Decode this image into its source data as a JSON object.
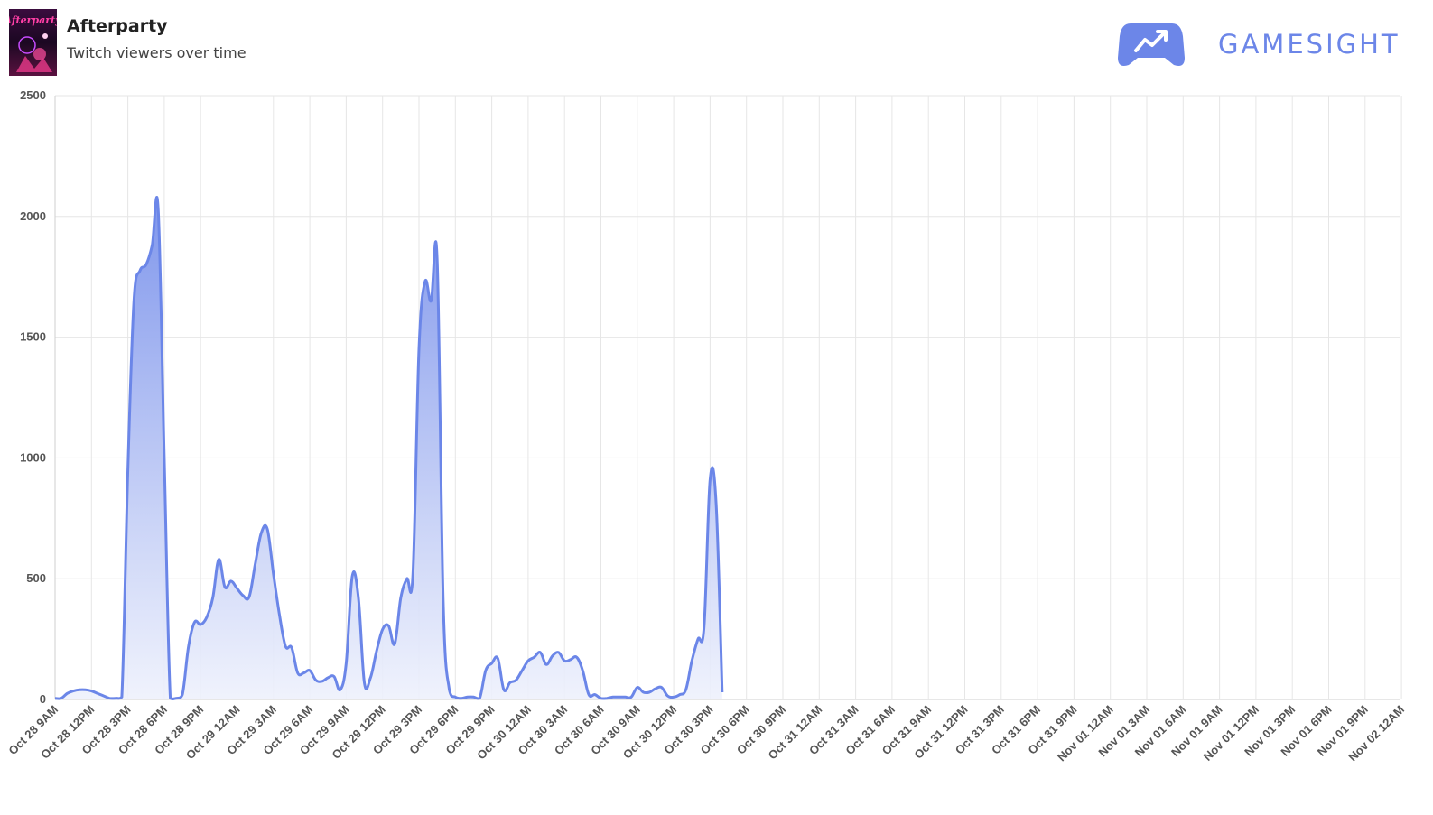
{
  "header": {
    "game_title": "Afterparty",
    "subtitle": "Twitch viewers over time",
    "brand_name": "GAMESIGHT",
    "cover_icon": "afterparty-cover-art",
    "brand_icon": "gamepad-trend-icon"
  },
  "colors": {
    "line": "#6b86e8",
    "fill_top": "#7f96ec",
    "fill_bottom": "#eef1fc",
    "grid": "#e6e6e6",
    "brand": "#6c86e8"
  },
  "chart_data": {
    "type": "area",
    "title": "",
    "xlabel": "",
    "ylabel": "",
    "ylim": [
      0,
      2500
    ],
    "yticks": [
      0,
      500,
      1000,
      1500,
      2000,
      2500
    ],
    "grid": true,
    "x_tick_labels": [
      "Oct 28 9AM",
      "Oct 28 12PM",
      "Oct 28 3PM",
      "Oct 28 6PM",
      "Oct 28 9PM",
      "Oct 29 12AM",
      "Oct 29 3AM",
      "Oct 29 6AM",
      "Oct 29 9AM",
      "Oct 29 12PM",
      "Oct 29 3PM",
      "Oct 29 6PM",
      "Oct 29 9PM",
      "Oct 30 12AM",
      "Oct 30 3AM",
      "Oct 30 6AM",
      "Oct 30 9AM",
      "Oct 30 12PM",
      "Oct 30 3PM",
      "Oct 30 6PM",
      "Oct 30 9PM",
      "Oct 31 12AM",
      "Oct 31 3AM",
      "Oct 31 6AM",
      "Oct 31 9AM",
      "Oct 31 12PM",
      "Oct 31 3PM",
      "Oct 31 6PM",
      "Oct 31 9PM",
      "Nov 01 12AM",
      "Nov 01 3AM",
      "Nov 01 6AM",
      "Nov 01 9AM",
      "Nov 01 12PM",
      "Nov 01 3PM",
      "Nov 01 6PM",
      "Nov 01 9PM",
      "Nov 02 12AM"
    ],
    "series": [
      {
        "values": [
          5,
          5,
          25,
          35,
          40,
          40,
          35,
          25,
          15,
          5,
          5,
          10,
          950,
          1650,
          1775,
          1800,
          1880,
          2030,
          1000,
          5,
          5,
          20,
          220,
          320,
          310,
          340,
          420,
          580,
          465,
          490,
          460,
          430,
          425,
          560,
          690,
          705,
          520,
          350,
          220,
          215,
          110,
          110,
          120,
          80,
          75,
          90,
          95,
          40,
          150,
          510,
          425,
          70,
          90,
          200,
          290,
          305,
          230,
          420,
          500,
          520,
          1450,
          1730,
          1650,
          1825,
          400,
          40,
          10,
          5,
          10,
          10,
          5,
          120,
          150,
          170,
          40,
          70,
          80,
          120,
          160,
          175,
          195,
          145,
          180,
          195,
          160,
          165,
          175,
          120,
          20,
          20,
          5,
          5,
          10,
          10,
          10,
          10,
          50,
          30,
          30,
          45,
          50,
          15,
          10,
          20,
          40,
          160,
          250,
          300,
          910,
          810,
          30
        ]
      }
    ]
  }
}
